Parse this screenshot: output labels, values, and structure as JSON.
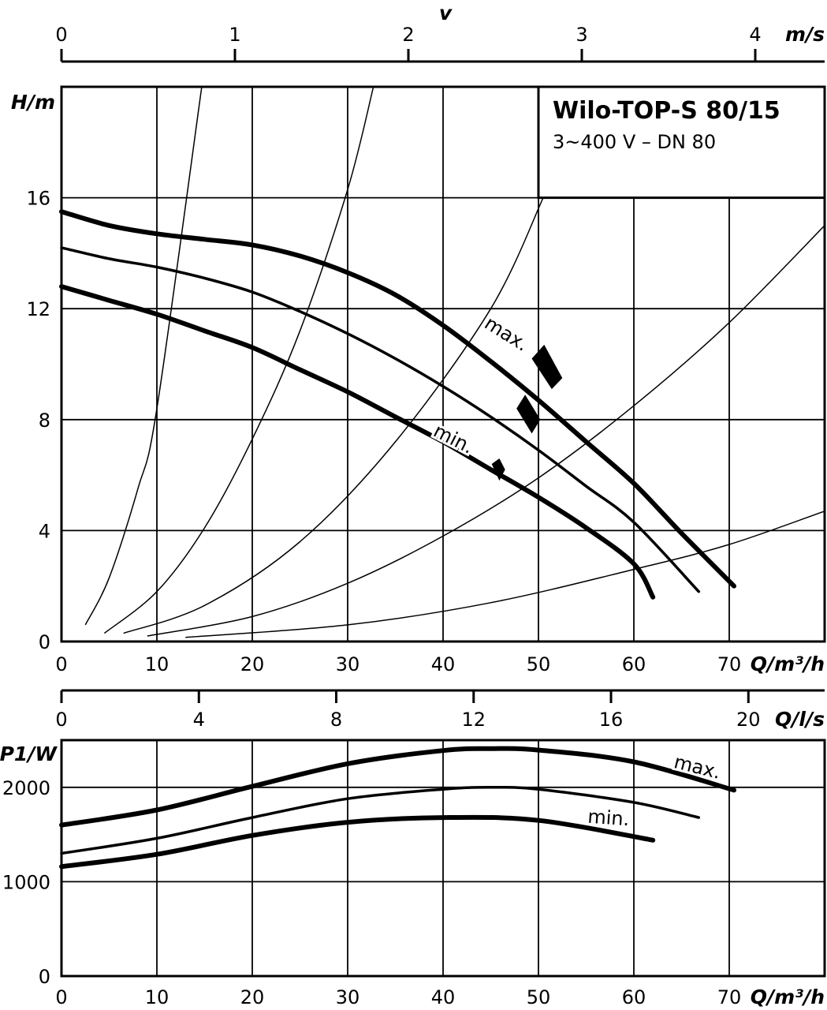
{
  "chart_data": [
    {
      "type": "line",
      "title": "Wilo-TOP-S 80/15",
      "subtitle": "3~400 V – DN 80",
      "xlabel": "Q/m³/h",
      "ylabel": "H/m",
      "xlim": [
        0,
        80
      ],
      "ylim": [
        0,
        20
      ],
      "x_ticks": [
        "0",
        "10",
        "20",
        "30",
        "40",
        "50",
        "60",
        "70"
      ],
      "y_ticks": [
        "0",
        "4",
        "8",
        "12",
        "16"
      ],
      "grid": true,
      "v_axis": {
        "label": "v",
        "unit": "m/s",
        "ticks": [
          "0",
          "1",
          "2",
          "3",
          "4"
        ],
        "max_q_m3h": 80,
        "max_v": 4.4
      },
      "series": [
        {
          "name": "max.",
          "width": 6,
          "x": [
            0,
            5,
            10,
            15,
            20,
            25,
            30,
            35,
            40,
            45,
            50,
            55,
            60,
            65,
            70.5
          ],
          "y": [
            15.5,
            15.0,
            14.7,
            14.5,
            14.3,
            13.9,
            13.3,
            12.5,
            11.4,
            10.1,
            8.7,
            7.2,
            5.7,
            3.9,
            2.0
          ]
        },
        {
          "name": "",
          "width": 3.5,
          "x": [
            0,
            5,
            10,
            15,
            20,
            25,
            30,
            35,
            40,
            45,
            50,
            55,
            60,
            66.8
          ],
          "y": [
            14.2,
            13.8,
            13.5,
            13.1,
            12.6,
            11.9,
            11.1,
            10.2,
            9.2,
            8.1,
            6.9,
            5.6,
            4.3,
            1.8
          ]
        },
        {
          "name": "min.",
          "width": 6,
          "x": [
            0,
            5,
            10,
            15,
            20,
            25,
            30,
            35,
            40,
            45,
            50,
            55,
            60,
            62
          ],
          "y": [
            12.8,
            12.3,
            11.8,
            11.2,
            10.6,
            9.8,
            9.0,
            8.1,
            7.2,
            6.2,
            5.2,
            4.1,
            2.8,
            1.6
          ]
        }
      ],
      "system_curves": [
        {
          "x": [
            2.5,
            5,
            8,
            10,
            14.7
          ],
          "y": [
            0.6,
            2.3,
            5.5,
            8.4,
            20.0
          ]
        },
        {
          "x": [
            4.5,
            10,
            15,
            20,
            25,
            30,
            32.7
          ],
          "y": [
            0.3,
            1.8,
            4.1,
            7.3,
            11.2,
            16.3,
            20.0
          ]
        },
        {
          "x": [
            6.5,
            15,
            25,
            35,
            45,
            50.5
          ],
          "y": [
            0.3,
            1.3,
            3.6,
            7.2,
            12.0,
            16.0
          ]
        },
        {
          "x": [
            9,
            20,
            30,
            40,
            50,
            60,
            70,
            80
          ],
          "y": [
            0.2,
            0.9,
            2.1,
            3.8,
            5.9,
            8.5,
            11.5,
            15.0
          ]
        },
        {
          "x": [
            13,
            30,
            45,
            60,
            70,
            80
          ],
          "y": [
            0.15,
            0.6,
            1.4,
            2.6,
            3.5,
            4.7
          ]
        }
      ],
      "labels": [
        {
          "text": "max.",
          "x": 46.3,
          "y": 10.9,
          "rotation": 32
        },
        {
          "text": "min.",
          "x": 40.8,
          "y": 7.1,
          "rotation": 27
        }
      ],
      "markers": [
        {
          "points": [
            [
              49.3,
              10.2
            ],
            [
              51.4,
              9.1
            ],
            [
              52.5,
              9.5
            ],
            [
              50.6,
              10.7
            ]
          ]
        },
        {
          "points": [
            [
              47.7,
              8.4
            ],
            [
              49.3,
              7.5
            ],
            [
              50.2,
              8.0
            ],
            [
              48.6,
              8.9
            ]
          ]
        },
        {
          "points": [
            [
              45.1,
              6.4
            ],
            [
              45.9,
              5.8
            ],
            [
              46.5,
              6.2
            ],
            [
              45.9,
              6.6
            ]
          ]
        }
      ]
    },
    {
      "type": "line",
      "xlabel": "Q/m³/h",
      "ylabel": "P1/W",
      "xlim": [
        0,
        80
      ],
      "ylim": [
        0,
        2500
      ],
      "x_ticks": [
        "0",
        "10",
        "20",
        "30",
        "40",
        "50",
        "60",
        "70"
      ],
      "y_ticks": [
        "0",
        "1000",
        "2000"
      ],
      "grid": true,
      "q_ls_axis": {
        "unit": "Q/l/s",
        "ticks": [
          "0",
          "4",
          "8",
          "12",
          "16",
          "20"
        ],
        "max_q_m3h": 80,
        "max_q_ls": 22.22
      },
      "series": [
        {
          "name": "max.",
          "width": 6,
          "x": [
            0,
            10,
            20,
            30,
            40,
            45,
            50,
            60,
            70.5
          ],
          "y": [
            1600,
            1760,
            2010,
            2250,
            2390,
            2410,
            2395,
            2270,
            1970
          ]
        },
        {
          "name": "",
          "width": 3.5,
          "x": [
            0,
            10,
            20,
            30,
            40,
            45,
            50,
            60,
            66.8
          ],
          "y": [
            1300,
            1460,
            1680,
            1880,
            1980,
            2000,
            1980,
            1840,
            1680
          ]
        },
        {
          "name": "min.",
          "width": 6,
          "x": [
            0,
            10,
            20,
            30,
            40,
            50,
            62
          ],
          "y": [
            1160,
            1290,
            1490,
            1630,
            1680,
            1650,
            1440
          ]
        }
      ],
      "labels": [
        {
          "text": "max.",
          "x": 66.5,
          "y": 2150,
          "rotation": -14
        },
        {
          "text": "min.",
          "x": 57.3,
          "y": 1610,
          "rotation": -4
        }
      ]
    }
  ]
}
